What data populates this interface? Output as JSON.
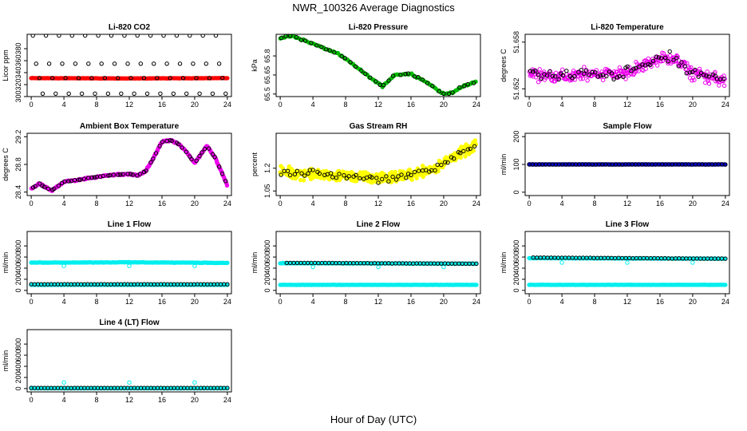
{
  "figure": {
    "title": "NWR_100326  Average Diagnostics",
    "xlabel": "Hour of Day (UTC)"
  },
  "chart_data": [
    {
      "type": "scatter",
      "title": "Li-820 CO2",
      "ylabel": "Licor ppm",
      "xlim": [
        -0.5,
        24.5
      ],
      "xticks": [
        0,
        4,
        8,
        12,
        16,
        20,
        24
      ],
      "ylim": [
        300,
        404
      ],
      "yticks": [
        300,
        320,
        340,
        360,
        380
      ],
      "series": [
        {
          "color": "#ff0000",
          "marker": "filled",
          "pattern": "flat",
          "x0": 0,
          "x1": 24,
          "values": [
            330.8,
            330.3,
            330.9
          ],
          "n": 150,
          "noise": 0.4
        },
        {
          "color": "#000000",
          "marker": "open",
          "pattern": "levels",
          "levels": [
            402,
            355,
            331,
            305
          ],
          "n": 60
        }
      ]
    },
    {
      "type": "scatter",
      "title": "Li-820 Pressure",
      "ylabel": "kPa",
      "xlim": [
        -0.5,
        24.5
      ],
      "xticks": [
        0,
        4,
        8,
        12,
        16,
        20,
        24
      ],
      "ylim": [
        65.48,
        65.97
      ],
      "yticks": [
        65.5,
        65.65,
        65.8
      ],
      "series": [
        {
          "color": "#00bb00",
          "marker": "filled",
          "pattern": "curve",
          "x": [
            0,
            1.5,
            3,
            5,
            7,
            9,
            11,
            12.5,
            14,
            16,
            18,
            20,
            21,
            22,
            24
          ],
          "y": [
            65.94,
            65.96,
            65.92,
            65.87,
            65.82,
            65.73,
            65.63,
            65.56,
            65.65,
            65.66,
            65.59,
            65.5,
            65.51,
            65.55,
            65.6
          ],
          "n": 120,
          "noise": 0.008
        },
        {
          "color": "#000000",
          "marker": "open",
          "pattern": "curve",
          "x": [
            0,
            1.5,
            3,
            5,
            7,
            9,
            11,
            12.5,
            14,
            16,
            18,
            20,
            21,
            22,
            24
          ],
          "y": [
            65.94,
            65.96,
            65.92,
            65.87,
            65.82,
            65.73,
            65.63,
            65.56,
            65.65,
            65.66,
            65.59,
            65.5,
            65.51,
            65.55,
            65.6
          ],
          "n": 40,
          "noise": 0.01
        }
      ]
    },
    {
      "type": "scatter",
      "title": "Li-820 Temperature",
      "ylabel": "degrees C",
      "xlim": [
        -0.5,
        24.5
      ],
      "xticks": [
        0,
        4,
        8,
        12,
        16,
        20,
        24
      ],
      "ylim": [
        51.651,
        51.659
      ],
      "yticks": [
        51.652,
        51.658
      ],
      "series": [
        {
          "color": "#ee00ee",
          "marker": "open",
          "pattern": "curve",
          "x": [
            0,
            4,
            8,
            12,
            15,
            17.5,
            20,
            24
          ],
          "y": [
            51.654,
            51.6535,
            51.654,
            51.654,
            51.6555,
            51.656,
            51.654,
            51.653
          ],
          "n": 320,
          "noise": 0.0012
        },
        {
          "color": "#000000",
          "marker": "open",
          "pattern": "curve",
          "x": [
            0,
            4,
            8,
            12,
            15,
            17.5,
            20,
            24
          ],
          "y": [
            51.654,
            51.6535,
            51.654,
            51.654,
            51.6555,
            51.656,
            51.654,
            51.653
          ],
          "n": 70,
          "noise": 0.0012
        }
      ]
    },
    {
      "type": "scatter",
      "title": "Ambient Box Temperature",
      "ylabel": "degrees C",
      "xlim": [
        -0.5,
        24.5
      ],
      "xticks": [
        0,
        4,
        8,
        12,
        16,
        20,
        24
      ],
      "ylim": [
        28.35,
        29.25
      ],
      "yticks": [
        28.4,
        28.8,
        29.2
      ],
      "series": [
        {
          "color": "#ee00ee",
          "marker": "filled",
          "pattern": "curve",
          "x": [
            0,
            1,
            2.5,
            4,
            6,
            8,
            10,
            12,
            13,
            14,
            15,
            16,
            17,
            18,
            19,
            20,
            21.5,
            22.5,
            24
          ],
          "y": [
            28.45,
            28.52,
            28.42,
            28.55,
            28.58,
            28.62,
            28.65,
            28.66,
            28.64,
            28.7,
            28.9,
            29.13,
            29.15,
            29.1,
            28.98,
            28.82,
            29.07,
            28.9,
            28.5
          ],
          "n": 320,
          "noise": 0.015
        },
        {
          "color": "#000000",
          "marker": "open",
          "pattern": "curve",
          "x": [
            0,
            1,
            2.5,
            4,
            6,
            8,
            10,
            12,
            13,
            14,
            15,
            16,
            17,
            18,
            19,
            20,
            21.5,
            22.5,
            24
          ],
          "y": [
            28.45,
            28.52,
            28.42,
            28.55,
            28.58,
            28.62,
            28.65,
            28.66,
            28.64,
            28.7,
            28.9,
            29.13,
            29.15,
            29.1,
            28.98,
            28.82,
            29.07,
            28.9,
            28.5
          ],
          "n": 60,
          "noise": 0.008
        }
      ]
    },
    {
      "type": "scatter",
      "title": "Gas Stream RH",
      "ylabel": "percent",
      "xlim": [
        -0.5,
        24.5
      ],
      "xticks": [
        0,
        4,
        8,
        12,
        16,
        20,
        24
      ],
      "ylim": [
        1.02,
        1.43
      ],
      "yticks": [
        1.05,
        1.2
      ],
      "series": [
        {
          "color": "#ffff00",
          "marker": "filled",
          "pattern": "curve",
          "x": [
            0,
            4,
            8,
            12,
            16,
            19,
            21,
            24
          ],
          "y": [
            1.17,
            1.16,
            1.15,
            1.13,
            1.16,
            1.2,
            1.27,
            1.35
          ],
          "n": 420,
          "noise": 0.05
        },
        {
          "color": "#000000",
          "marker": "open",
          "pattern": "curve",
          "x": [
            0,
            4,
            8,
            12,
            16,
            19,
            21,
            24
          ],
          "y": [
            1.17,
            1.17,
            1.15,
            1.13,
            1.16,
            1.2,
            1.27,
            1.36
          ],
          "n": 60,
          "noise": 0.035
        }
      ]
    },
    {
      "type": "scatter",
      "title": "Sample Flow",
      "ylabel": "ml/min",
      "xlim": [
        -0.5,
        24.5
      ],
      "xticks": [
        0,
        4,
        8,
        12,
        16,
        20,
        24
      ],
      "ylim": [
        -12,
        212
      ],
      "yticks": [
        0,
        100,
        200
      ],
      "series": [
        {
          "color": "#0000cc",
          "marker": "filled",
          "pattern": "flat",
          "x0": 0,
          "x1": 24,
          "values": [
            100,
            100
          ],
          "n": 150,
          "noise": 0.5
        },
        {
          "color": "#000000",
          "marker": "open",
          "pattern": "flat",
          "x0": 0,
          "x1": 24,
          "values": [
            100,
            100
          ],
          "n": 60,
          "noise": 0.5
        }
      ]
    },
    {
      "type": "scatter",
      "title": "Line 1 Flow",
      "ylabel": "ml/min",
      "xlim": [
        -0.5,
        24.5
      ],
      "xticks": [
        0,
        4,
        8,
        12,
        16,
        20,
        24
      ],
      "ylim": [
        -60,
        1060
      ],
      "yticks": [
        0,
        200,
        400,
        600,
        800
      ],
      "series": [
        {
          "color": "#00eeee",
          "marker": "filled",
          "pattern": "flat",
          "x0": 0,
          "x1": 24,
          "values": [
            500,
            505,
            495
          ],
          "n": 150,
          "noise": 6
        },
        {
          "color": "#00eeee",
          "marker": "filled",
          "pattern": "flat",
          "x0": 0,
          "x1": 24,
          "values": [
            100,
            100
          ],
          "n": 150,
          "noise": 3
        },
        {
          "color": "#00eeee",
          "marker": "open",
          "pattern": "points",
          "x": [
            4,
            12,
            20
          ],
          "y": [
            440,
            440,
            440
          ]
        },
        {
          "color": "#000000",
          "marker": "open",
          "pattern": "flat",
          "x0": 0,
          "x1": 24,
          "values": [
            110,
            110
          ],
          "n": 60,
          "noise": 1
        }
      ]
    },
    {
      "type": "scatter",
      "title": "Line 2 Flow",
      "ylabel": "ml/min",
      "xlim": [
        -0.5,
        24.5
      ],
      "xticks": [
        0,
        4,
        8,
        12,
        16,
        20,
        24
      ],
      "ylim": [
        -60,
        1060
      ],
      "yticks": [
        0,
        200,
        400,
        600,
        800
      ],
      "series": [
        {
          "color": "#00eeee",
          "marker": "filled",
          "pattern": "flat",
          "x0": 0,
          "x1": 24,
          "values": [
            490,
            485,
            480
          ],
          "n": 150,
          "noise": 5
        },
        {
          "color": "#00eeee",
          "marker": "filled",
          "pattern": "flat",
          "x0": 0,
          "x1": 24,
          "values": [
            100,
            100
          ],
          "n": 150,
          "noise": 3
        },
        {
          "color": "#00eeee",
          "marker": "open",
          "pattern": "points",
          "x": [
            4,
            12,
            20
          ],
          "y": [
            420,
            420,
            420
          ]
        },
        {
          "color": "#000000",
          "marker": "open",
          "pattern": "flat",
          "x0": 0.8,
          "x1": 24,
          "values": [
            495,
            480
          ],
          "n": 55,
          "noise": 3
        }
      ]
    },
    {
      "type": "scatter",
      "title": "Line 3 Flow",
      "ylabel": "ml/min",
      "xlim": [
        -0.5,
        24.5
      ],
      "xticks": [
        0,
        4,
        8,
        12,
        16,
        20,
        24
      ],
      "ylim": [
        -60,
        1060
      ],
      "yticks": [
        0,
        200,
        400,
        600,
        800
      ],
      "series": [
        {
          "color": "#00eeee",
          "marker": "filled",
          "pattern": "flat",
          "x0": 0,
          "x1": 24,
          "values": [
            580,
            575,
            570
          ],
          "n": 150,
          "noise": 5
        },
        {
          "color": "#00eeee",
          "marker": "filled",
          "pattern": "flat",
          "x0": 0,
          "x1": 24,
          "values": [
            100,
            100
          ],
          "n": 150,
          "noise": 3
        },
        {
          "color": "#00eeee",
          "marker": "open",
          "pattern": "points",
          "x": [
            4,
            12,
            20
          ],
          "y": [
            500,
            500,
            500
          ]
        },
        {
          "color": "#000000",
          "marker": "open",
          "pattern": "flat",
          "x0": 0.5,
          "x1": 24,
          "values": [
            590,
            570
          ],
          "n": 55,
          "noise": 3
        }
      ]
    },
    {
      "type": "scatter",
      "title": "Line 4 (LT) Flow",
      "ylabel": "ml/min",
      "xlim": [
        -0.5,
        24.5
      ],
      "xticks": [
        0,
        4,
        8,
        12,
        16,
        20,
        24
      ],
      "ylim": [
        -60,
        1060
      ],
      "yticks": [
        0,
        200,
        400,
        600,
        800
      ],
      "series": [
        {
          "color": "#00eeee",
          "marker": "filled",
          "pattern": "flat",
          "x0": 0,
          "x1": 24,
          "values": [
            5,
            5
          ],
          "n": 120,
          "noise": 2
        },
        {
          "color": "#00eeee",
          "marker": "open",
          "pattern": "points",
          "x": [
            0.05,
            4,
            12,
            20
          ],
          "y": [
            15,
            110,
            110,
            110
          ]
        },
        {
          "color": "#000000",
          "marker": "open",
          "pattern": "flat",
          "x0": 0,
          "x1": 24,
          "values": [
            10,
            10
          ],
          "n": 60,
          "noise": 1
        }
      ]
    }
  ]
}
